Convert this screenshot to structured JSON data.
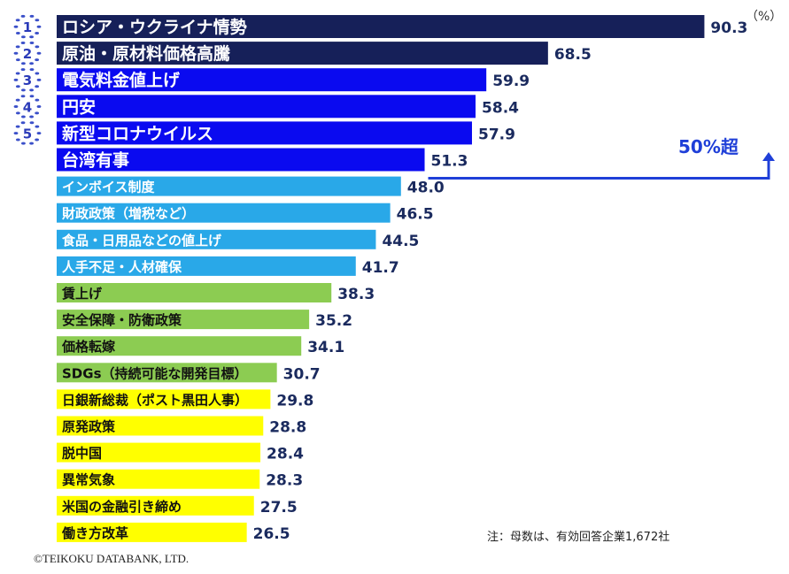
{
  "chart_data": {
    "type": "bar",
    "orientation": "horizontal",
    "unit_label": "（%）",
    "categories": [
      "ロシア・ウクライナ情勢",
      "原油・原材料価格高騰",
      "電気料金値上げ",
      "円安",
      "新型コロナウイルス",
      "台湾有事",
      "インボイス制度",
      "財政政策（増税など）",
      "食品・日用品などの値上げ",
      "人手不足・人材確保",
      "賃上げ",
      "安全保障・防衛政策",
      "価格転嫁",
      "SDGs（持続可能な開発目標）",
      "日銀新総裁（ポスト黒田人事）",
      "原発政策",
      "脱中国",
      "異常気象",
      "米国の金融引き締め",
      "働き方改革"
    ],
    "values": [
      90.3,
      68.5,
      59.9,
      58.4,
      57.9,
      51.3,
      48.0,
      46.5,
      44.5,
      41.7,
      38.3,
      35.2,
      34.1,
      30.7,
      29.8,
      28.8,
      28.4,
      28.3,
      27.5,
      26.5
    ],
    "value_labels": [
      "90.3",
      "68.5",
      "59.9",
      "58.4",
      "57.9",
      "51.3",
      "48.0",
      "46.5",
      "44.5",
      "41.7",
      "38.3",
      "35.2",
      "34.1",
      "30.7",
      "29.8",
      "28.8",
      "28.4",
      "28.3",
      "27.5",
      "26.5"
    ],
    "bar_colors": [
      "#162059",
      "#162059",
      "#0a0af0",
      "#0a0af0",
      "#0a0af0",
      "#0a0af0",
      "#29a8e8",
      "#29a8e8",
      "#29a8e8",
      "#29a8e8",
      "#8ccc52",
      "#8ccc52",
      "#8ccc52",
      "#8ccc52",
      "#ffff00",
      "#ffff00",
      "#ffff00",
      "#ffff00",
      "#ffff00",
      "#ffff00"
    ],
    "label_colors": [
      "#ffffff",
      "#ffffff",
      "#ffffff",
      "#ffffff",
      "#ffffff",
      "#ffffff",
      "#ffffff",
      "#ffffff",
      "#ffffff",
      "#ffffff",
      "#111111",
      "#111111",
      "#111111",
      "#111111",
      "#111111",
      "#111111",
      "#111111",
      "#111111",
      "#111111",
      "#111111"
    ],
    "ranks": [
      "1",
      "2",
      "3",
      "4",
      "5"
    ],
    "threshold_annotation": "50%超",
    "note": "注：母数は、有効回答企業1,672社",
    "credit": "©TEIKOKU DATABANK, LTD."
  }
}
